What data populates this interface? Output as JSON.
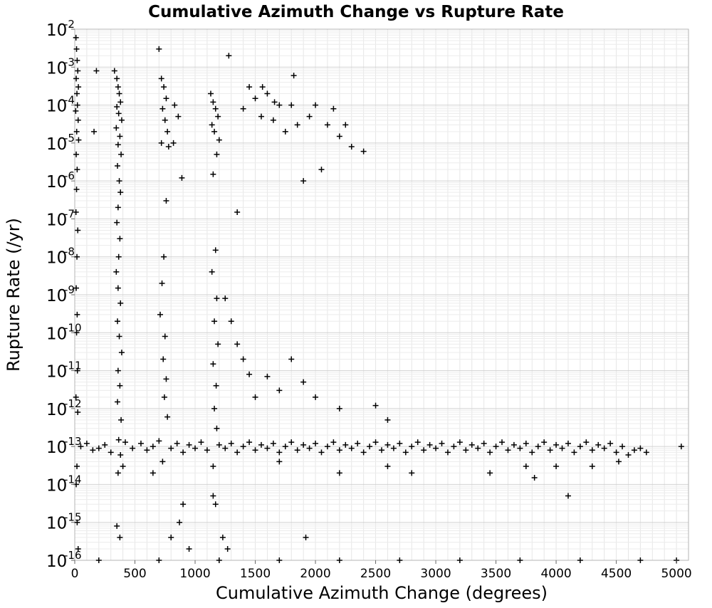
{
  "chart_data": {
    "type": "scatter",
    "title": "Cumulative Azimuth Change vs Rupture Rate",
    "xlabel": "Cumulative Azimuth Change (degrees)",
    "ylabel": "Rupture Rate (/yr)",
    "xlim": [
      0,
      5100
    ],
    "ylim": [
      1e-16,
      0.01
    ],
    "y_scale": "log",
    "grid": true,
    "legend": "none",
    "marker": "plus",
    "marker_color": "#000000",
    "x_ticks": [
      0,
      500,
      1000,
      1500,
      2000,
      2500,
      3000,
      3500,
      4000,
      4500,
      5000
    ],
    "y_tick_labels": [
      {
        "base": "10",
        "exp": "-2"
      },
      {
        "base": "10",
        "exp": "-3"
      },
      {
        "base": "10",
        "exp": "-4"
      },
      {
        "base": "10",
        "exp": "-5"
      },
      {
        "base": "10",
        "exp": "-6"
      },
      {
        "base": "10",
        "exp": "-7"
      },
      {
        "base": "10",
        "exp": "-8"
      },
      {
        "base": "10",
        "exp": "-9"
      },
      {
        "base": "10",
        "exp": "-10"
      },
      {
        "base": "10",
        "exp": "-11"
      },
      {
        "base": "10",
        "exp": "-12"
      },
      {
        "base": "10",
        "exp": "-13"
      },
      {
        "base": "10",
        "exp": "-14"
      },
      {
        "base": "10",
        "exp": "-15"
      },
      {
        "base": "10",
        "exp": "-16"
      }
    ],
    "series": [
      {
        "points": [
          [
            10,
            0.006
          ],
          [
            15,
            0.003
          ],
          [
            20,
            0.0015
          ],
          [
            25,
            0.0008
          ],
          [
            12,
            0.0005
          ],
          [
            30,
            0.0003
          ],
          [
            18,
            0.0002
          ],
          [
            22,
            0.0001
          ],
          [
            8,
            7e-05
          ],
          [
            28,
            4e-05
          ],
          [
            16,
            2e-05
          ],
          [
            32,
            1.2e-05
          ],
          [
            12,
            5e-06
          ],
          [
            20,
            2e-06
          ],
          [
            15,
            6e-07
          ],
          [
            10,
            1.5e-07
          ],
          [
            25,
            5e-08
          ],
          [
            18,
            1e-08
          ],
          [
            12,
            1.5e-09
          ],
          [
            20,
            3e-10
          ],
          [
            15,
            1e-10
          ],
          [
            22,
            1e-11
          ],
          [
            10,
            2e-12
          ],
          [
            25,
            8e-13
          ],
          [
            18,
            3e-14
          ],
          [
            12,
            1e-14
          ],
          [
            20,
            1e-15
          ],
          [
            28,
            2e-16
          ],
          [
            180,
            0.0008
          ],
          [
            160,
            2e-05
          ],
          [
            330,
            0.0008
          ],
          [
            350,
            0.0005
          ],
          [
            360,
            0.0003
          ],
          [
            370,
            0.0002
          ],
          [
            380,
            0.00012
          ],
          [
            350,
            9e-05
          ],
          [
            365,
            6e-05
          ],
          [
            390,
            4e-05
          ],
          [
            345,
            2.5e-05
          ],
          [
            375,
            1.5e-05
          ],
          [
            360,
            9e-06
          ],
          [
            385,
            5e-06
          ],
          [
            355,
            2.5e-06
          ],
          [
            370,
            1e-06
          ],
          [
            380,
            5e-07
          ],
          [
            360,
            2e-07
          ],
          [
            350,
            8e-08
          ],
          [
            375,
            3e-08
          ],
          [
            365,
            1e-08
          ],
          [
            345,
            4e-09
          ],
          [
            360,
            1.5e-09
          ],
          [
            380,
            6e-10
          ],
          [
            355,
            2e-10
          ],
          [
            370,
            8e-11
          ],
          [
            390,
            3e-11
          ],
          [
            360,
            1e-11
          ],
          [
            375,
            4e-12
          ],
          [
            355,
            1.5e-12
          ],
          [
            385,
            5e-13
          ],
          [
            365,
            1.5e-13
          ],
          [
            380,
            6e-14
          ],
          [
            360,
            2e-14
          ],
          [
            350,
            8e-16
          ],
          [
            375,
            4e-16
          ],
          [
            700,
            0.003
          ],
          [
            720,
            0.0005
          ],
          [
            740,
            0.0003
          ],
          [
            760,
            0.00015
          ],
          [
            730,
            8e-05
          ],
          [
            750,
            4e-05
          ],
          [
            770,
            2e-05
          ],
          [
            720,
            1e-05
          ],
          [
            780,
            8e-06
          ],
          [
            760,
            3e-07
          ],
          [
            740,
            1e-08
          ],
          [
            725,
            2e-09
          ],
          [
            710,
            3e-10
          ],
          [
            750,
            8e-11
          ],
          [
            735,
            2e-11
          ],
          [
            760,
            6e-12
          ],
          [
            745,
            2e-12
          ],
          [
            770,
            6e-13
          ],
          [
            730,
            4e-14
          ],
          [
            800,
            4e-16
          ],
          [
            870,
            1e-15
          ],
          [
            950,
            2e-16
          ],
          [
            830,
            0.0001
          ],
          [
            860,
            5e-05
          ],
          [
            890,
            1.2e-06
          ],
          [
            820,
            1e-05
          ],
          [
            1130,
            0.0002
          ],
          [
            1150,
            0.00012
          ],
          [
            1170,
            8e-05
          ],
          [
            1190,
            5e-05
          ],
          [
            1140,
            3e-05
          ],
          [
            1160,
            2e-05
          ],
          [
            1200,
            1.2e-05
          ],
          [
            1180,
            5e-06
          ],
          [
            1150,
            1.5e-06
          ],
          [
            1170,
            1.5e-08
          ],
          [
            1140,
            4e-09
          ],
          [
            1180,
            8e-10
          ],
          [
            1160,
            2e-10
          ],
          [
            1190,
            5e-11
          ],
          [
            1150,
            1.5e-11
          ],
          [
            1175,
            4e-12
          ],
          [
            1160,
            1e-12
          ],
          [
            1180,
            3e-13
          ],
          [
            1150,
            3e-14
          ],
          [
            1170,
            3e-15
          ],
          [
            1230,
            4e-16
          ],
          [
            1270,
            2e-16
          ],
          [
            1280,
            0.002
          ],
          [
            1350,
            1.5e-07
          ],
          [
            1400,
            8e-05
          ],
          [
            1450,
            0.0003
          ],
          [
            1500,
            0.00015
          ],
          [
            1550,
            5e-05
          ],
          [
            1600,
            0.0002
          ],
          [
            1650,
            4e-05
          ],
          [
            1700,
            0.0001
          ],
          [
            1750,
            2e-05
          ],
          [
            1800,
            0.0001
          ],
          [
            1850,
            3e-05
          ],
          [
            1900,
            1e-06
          ],
          [
            1950,
            5e-05
          ],
          [
            2000,
            0.0001
          ],
          [
            2050,
            2e-06
          ],
          [
            2100,
            3e-05
          ],
          [
            2150,
            8e-05
          ],
          [
            2200,
            1.5e-05
          ],
          [
            2250,
            3e-05
          ],
          [
            2300,
            8e-06
          ],
          [
            2400,
            6e-06
          ],
          [
            1820,
            0.0006
          ],
          [
            1560,
            0.0003
          ],
          [
            1660,
            0.00012
          ],
          [
            1250,
            8e-10
          ],
          [
            1300,
            2e-10
          ],
          [
            1350,
            5e-11
          ],
          [
            1400,
            2e-11
          ],
          [
            1450,
            8e-12
          ],
          [
            1500,
            2e-12
          ],
          [
            1600,
            7e-12
          ],
          [
            1700,
            3e-12
          ],
          [
            1800,
            2e-11
          ],
          [
            1900,
            5e-12
          ],
          [
            2000,
            2e-12
          ],
          [
            2200,
            1e-12
          ],
          [
            2500,
            1.2e-12
          ],
          [
            2600,
            5e-13
          ],
          [
            1920,
            4e-16
          ],
          [
            50,
            1e-13
          ],
          [
            100,
            1.2e-13
          ],
          [
            150,
            8e-14
          ],
          [
            200,
            9e-14
          ],
          [
            250,
            1.1e-13
          ],
          [
            300,
            7e-14
          ],
          [
            420,
            1.3e-13
          ],
          [
            480,
            9e-14
          ],
          [
            550,
            1.2e-13
          ],
          [
            600,
            8e-14
          ],
          [
            650,
            1e-13
          ],
          [
            700,
            1.4e-13
          ],
          [
            800,
            9e-14
          ],
          [
            850,
            1.2e-13
          ],
          [
            900,
            7e-14
          ],
          [
            950,
            1.1e-13
          ],
          [
            1000,
            9e-14
          ],
          [
            1050,
            1.3e-13
          ],
          [
            1100,
            8e-14
          ],
          [
            1200,
            1.1e-13
          ],
          [
            1250,
            9e-14
          ],
          [
            1300,
            1.2e-13
          ],
          [
            1350,
            7e-14
          ],
          [
            1400,
            1e-13
          ],
          [
            1450,
            1.3e-13
          ],
          [
            1500,
            8e-14
          ],
          [
            1550,
            1.1e-13
          ],
          [
            1600,
            9e-14
          ],
          [
            1650,
            1.2e-13
          ],
          [
            1700,
            7e-14
          ],
          [
            1750,
            1e-13
          ],
          [
            1800,
            1.3e-13
          ],
          [
            1850,
            8e-14
          ],
          [
            1900,
            1.1e-13
          ],
          [
            1950,
            9e-14
          ],
          [
            2000,
            1.2e-13
          ],
          [
            2050,
            7e-14
          ],
          [
            2100,
            1e-13
          ],
          [
            2150,
            1.3e-13
          ],
          [
            2200,
            8e-14
          ],
          [
            2250,
            1.1e-13
          ],
          [
            2300,
            9e-14
          ],
          [
            2350,
            1.2e-13
          ],
          [
            2400,
            7e-14
          ],
          [
            2450,
            1e-13
          ],
          [
            2500,
            1.3e-13
          ],
          [
            2550,
            8e-14
          ],
          [
            2600,
            1.1e-13
          ],
          [
            2650,
            9e-14
          ],
          [
            2700,
            1.2e-13
          ],
          [
            2750,
            7e-14
          ],
          [
            2800,
            1e-13
          ],
          [
            2850,
            1.3e-13
          ],
          [
            2900,
            8e-14
          ],
          [
            2950,
            1.1e-13
          ],
          [
            3000,
            9e-14
          ],
          [
            3050,
            1.2e-13
          ],
          [
            3100,
            7e-14
          ],
          [
            3150,
            1e-13
          ],
          [
            3200,
            1.3e-13
          ],
          [
            3250,
            8e-14
          ],
          [
            3300,
            1.1e-13
          ],
          [
            3350,
            9e-14
          ],
          [
            3400,
            1.2e-13
          ],
          [
            3450,
            7e-14
          ],
          [
            3500,
            1e-13
          ],
          [
            3550,
            1.3e-13
          ],
          [
            3600,
            8e-14
          ],
          [
            3650,
            1.1e-13
          ],
          [
            3700,
            9e-14
          ],
          [
            3750,
            1.2e-13
          ],
          [
            3800,
            7e-14
          ],
          [
            3850,
            1e-13
          ],
          [
            3900,
            1.3e-13
          ],
          [
            3950,
            8e-14
          ],
          [
            4000,
            1.1e-13
          ],
          [
            4050,
            9e-14
          ],
          [
            4100,
            1.2e-13
          ],
          [
            4150,
            7e-14
          ],
          [
            4200,
            1e-13
          ],
          [
            4250,
            1.3e-13
          ],
          [
            4300,
            8e-14
          ],
          [
            4350,
            1.1e-13
          ],
          [
            4400,
            9e-14
          ],
          [
            4450,
            1.2e-13
          ],
          [
            4500,
            7e-14
          ],
          [
            4550,
            1e-13
          ],
          [
            4600,
            6e-14
          ],
          [
            4650,
            8e-14
          ],
          [
            4700,
            9e-14
          ],
          [
            4750,
            7e-14
          ],
          [
            5040,
            1e-13
          ],
          [
            400,
            3e-14
          ],
          [
            650,
            2e-14
          ],
          [
            900,
            3e-15
          ],
          [
            1150,
            5e-15
          ],
          [
            1700,
            4e-14
          ],
          [
            2200,
            2e-14
          ],
          [
            2600,
            3e-14
          ],
          [
            2800,
            2e-14
          ],
          [
            3450,
            2e-14
          ],
          [
            3750,
            3e-14
          ],
          [
            3820,
            1.5e-14
          ],
          [
            4000,
            3e-14
          ],
          [
            4100,
            5e-15
          ],
          [
            4300,
            3e-14
          ],
          [
            4520,
            4e-14
          ],
          [
            200,
            1e-16
          ],
          [
            700,
            1e-16
          ],
          [
            1200,
            1e-16
          ],
          [
            1700,
            1e-16
          ],
          [
            2200,
            1e-16
          ],
          [
            2700,
            1e-16
          ],
          [
            3200,
            1e-16
          ],
          [
            3700,
            1e-16
          ],
          [
            4200,
            1e-16
          ],
          [
            4700,
            1e-16
          ],
          [
            5000,
            1e-16
          ]
        ]
      }
    ]
  }
}
